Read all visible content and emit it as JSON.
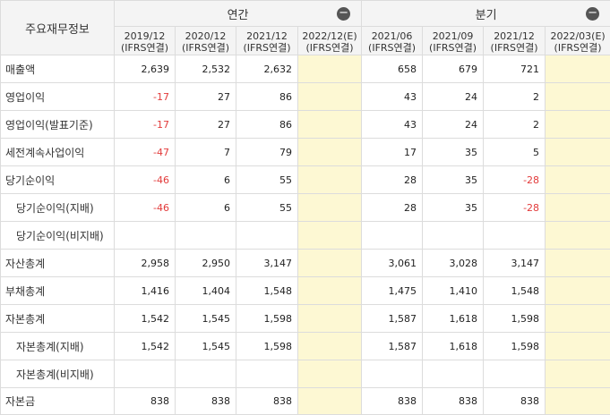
{
  "header": {
    "corner_label": "주요재무정보",
    "annual_label": "연간",
    "quarter_label": "분기",
    "collapse_symbol": "−",
    "annual_periods": [
      {
        "period": "2019/12",
        "basis": "(IFRS연결)"
      },
      {
        "period": "2020/12",
        "basis": "(IFRS연결)"
      },
      {
        "period": "2021/12",
        "basis": "(IFRS연결)"
      },
      {
        "period": "2022/12(E)",
        "basis": "(IFRS연결)"
      }
    ],
    "quarter_periods": [
      {
        "period": "2021/06",
        "basis": "(IFRS연결)"
      },
      {
        "period": "2021/09",
        "basis": "(IFRS연결)"
      },
      {
        "period": "2021/12",
        "basis": "(IFRS연결)"
      },
      {
        "period": "2022/03(E)",
        "basis": "(IFRS연결)"
      }
    ]
  },
  "rows": [
    {
      "label": "매출액",
      "values": [
        "2,639",
        "2,532",
        "2,632",
        "",
        "658",
        "679",
        "721",
        ""
      ]
    },
    {
      "label": "영업이익",
      "values": [
        "-17",
        "27",
        "86",
        "",
        "43",
        "24",
        "2",
        ""
      ]
    },
    {
      "label": "영업이익(발표기준)",
      "values": [
        "-17",
        "27",
        "86",
        "",
        "43",
        "24",
        "2",
        ""
      ]
    },
    {
      "label": "세전계속사업이익",
      "values": [
        "-47",
        "7",
        "79",
        "",
        "17",
        "35",
        "5",
        ""
      ]
    },
    {
      "label": "당기순이익",
      "values": [
        "-46",
        "6",
        "55",
        "",
        "28",
        "35",
        "-28",
        ""
      ]
    },
    {
      "label": "당기순이익(지배)",
      "values": [
        "-46",
        "6",
        "55",
        "",
        "28",
        "35",
        "-28",
        ""
      ]
    },
    {
      "label": "당기순이익(비지배)",
      "values": [
        "",
        "",
        "",
        "",
        "",
        "",
        "",
        ""
      ]
    },
    {
      "label": "자산총계",
      "values": [
        "2,958",
        "2,950",
        "3,147",
        "",
        "3,061",
        "3,028",
        "3,147",
        ""
      ]
    },
    {
      "label": "부채총계",
      "values": [
        "1,416",
        "1,404",
        "1,548",
        "",
        "1,475",
        "1,410",
        "1,548",
        ""
      ]
    },
    {
      "label": "자본총계",
      "values": [
        "1,542",
        "1,545",
        "1,598",
        "",
        "1,587",
        "1,618",
        "1,598",
        ""
      ]
    },
    {
      "label": "자본총계(지배)",
      "values": [
        "1,542",
        "1,545",
        "1,598",
        "",
        "1,587",
        "1,618",
        "1,598",
        ""
      ]
    },
    {
      "label": "자본총계(비지배)",
      "values": [
        "",
        "",
        "",
        "",
        "",
        "",
        "",
        ""
      ]
    },
    {
      "label": "자본금",
      "values": [
        "838",
        "838",
        "838",
        "",
        "838",
        "838",
        "838",
        ""
      ]
    }
  ],
  "colors": {
    "negative": "#e23b3b",
    "estimate_bg": "#fdf8d3",
    "header_bg": "#f4f4f4",
    "border": "#dcdcdc"
  }
}
